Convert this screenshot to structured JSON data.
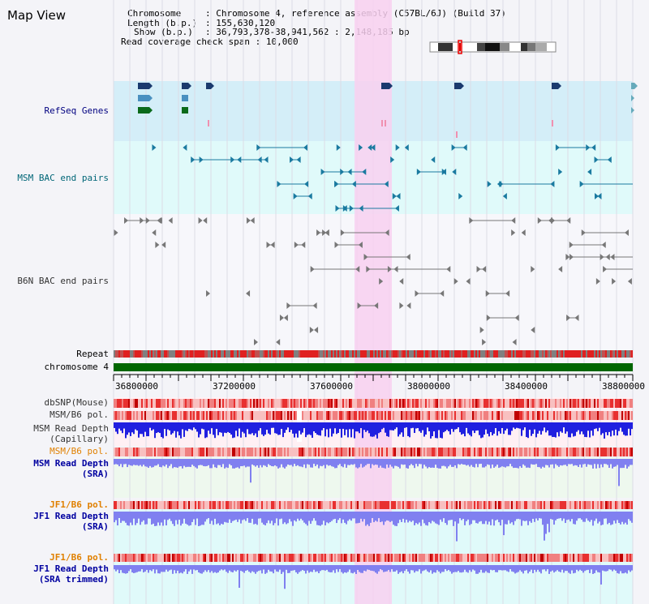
{
  "page": {
    "title": "Map View"
  },
  "header": {
    "chromosome_label": "Chromosome",
    "chromosome_value": "Chromosome 4, reference assembly (C57BL/6J) (Build 37)",
    "length_label": "Length (b.p.)",
    "length_value": "155,630,120",
    "show_label": "Show (b.p.)",
    "show_value": "36,793,378-38,941,562 : 2,148,185 bp",
    "coverage_label": "Read coverage check span",
    "coverage_value": "10,000"
  },
  "tracks": {
    "refseq": "RefSeq Genes",
    "msm_bac": "MSM BAC end pairs",
    "b6n_bac": "B6N BAC end pairs",
    "repeat": "Repeat",
    "chromosome": "chromosome 4",
    "dbsnp": "dbSNP(Mouse)",
    "msm_b6_pol_1": "MSM/B6 pol.",
    "msm_depth_cap_1": "MSM Read Depth",
    "msm_depth_cap_2": "(Capillary)",
    "msm_b6_pol_2": "MSM/B6 pol.",
    "msm_depth_sra_1": "MSM Read Depth",
    "msm_depth_sra_2": "(SRA)",
    "jf1_b6_pol_1": "JF1/B6 pol.",
    "jf1_depth_sra_1": "JF1 Read Depth",
    "jf1_depth_sra_2": "(SRA)",
    "jf1_b6_pol_2": "JF1/B6 pol.",
    "jf1_depth_trim_1": "JF1 Read Depth",
    "jf1_depth_trim_2": "(SRA trimmed)"
  },
  "axis": {
    "ticks": [
      "36800000",
      "37200000",
      "37600000",
      "38000000",
      "38400000",
      "38800000"
    ]
  },
  "colors": {
    "highlight": "#f8d0f0",
    "refseq_bg": "#d4eef8",
    "msm_bg": "#e0fafa",
    "chromosome_bar": "#006600",
    "depth_blue": "#2020e0",
    "depth_light": "#8080f0",
    "pol_red": "#f04040"
  }
}
